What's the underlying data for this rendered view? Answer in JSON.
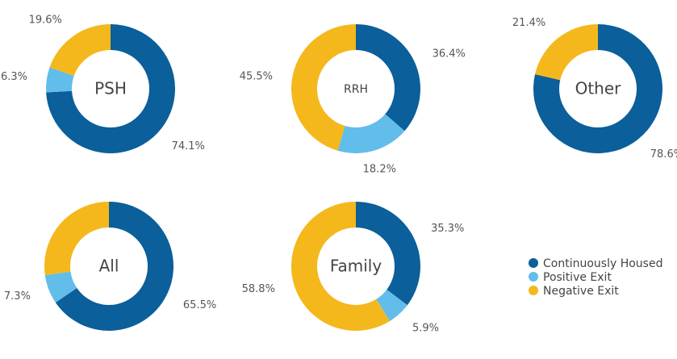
{
  "chart_data": [
    {
      "type": "donut",
      "title": "PSH",
      "values": [
        74.1,
        6.3,
        19.6
      ],
      "value_labels": [
        "74.1%",
        "6.3%",
        "19.6%"
      ]
    },
    {
      "type": "donut",
      "title": "RRH",
      "values": [
        36.4,
        18.2,
        45.5
      ],
      "value_labels": [
        "36.4%",
        "18.2%",
        "45.5%"
      ]
    },
    {
      "type": "donut",
      "title": "Other",
      "values": [
        78.6,
        0,
        21.4
      ],
      "value_labels": [
        "78.6%",
        null,
        "21.4%"
      ]
    },
    {
      "type": "donut",
      "title": "All",
      "values": [
        65.5,
        7.3,
        27.2
      ],
      "value_labels": [
        "65.5%",
        "7.3%",
        null
      ]
    },
    {
      "type": "donut",
      "title": "Family",
      "values": [
        35.3,
        5.9,
        58.8
      ],
      "value_labels": [
        "35.3%",
        "5.9%",
        "58.8%"
      ]
    }
  ],
  "legend": {
    "categories": [
      "Continuously Housed",
      "Positive Exit",
      "Negative Exit"
    ],
    "colors": [
      "#0b5f9a",
      "#63bdea",
      "#f4b81c"
    ]
  }
}
